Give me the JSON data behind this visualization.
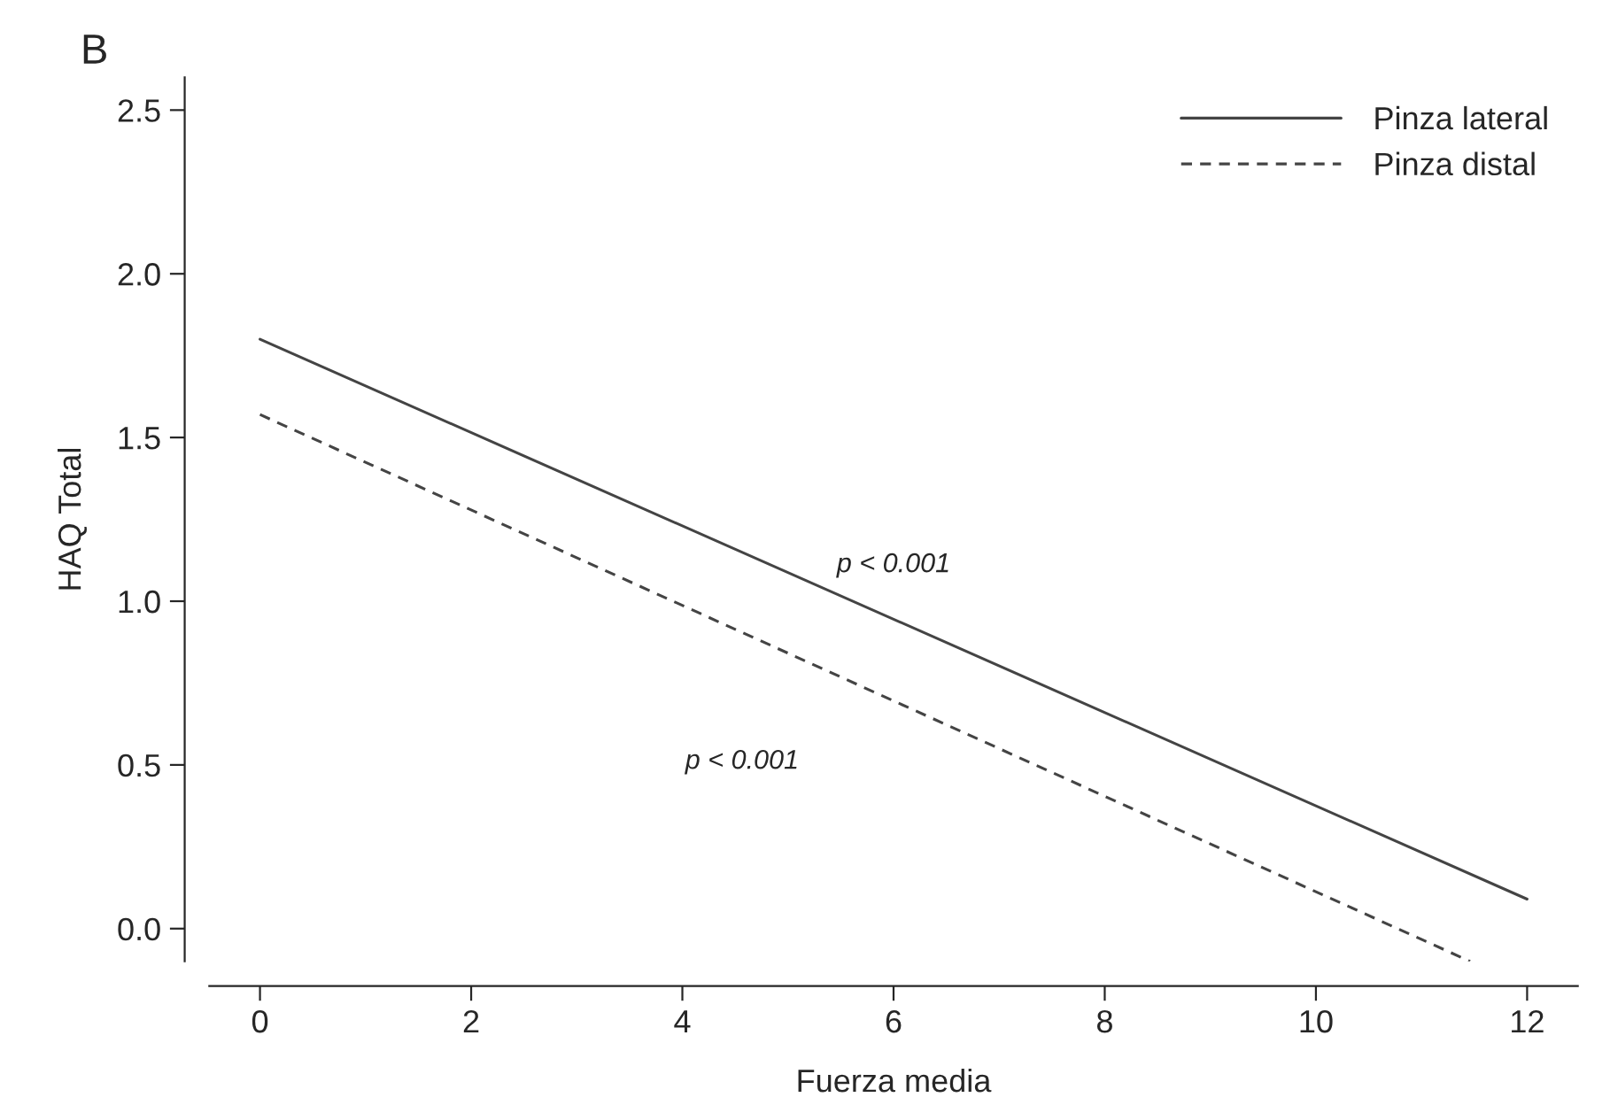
{
  "chart_data": {
    "type": "line",
    "xlabel": "Fuerza media",
    "ylabel": "HAQ Total",
    "series": [
      {
        "name": "Pinza lateral",
        "color": "#444444",
        "line_style": "solid",
        "x": [
          0,
          12
        ],
        "values": [
          1.8,
          0.09
        ]
      },
      {
        "name": "Pinza distal",
        "color": "#444444",
        "line_style": "dashed",
        "x": [
          0,
          11.46
        ],
        "values": [
          1.57,
          -0.1
        ]
      }
    ],
    "xlim": [
      -0.48,
      12.48
    ],
    "xticks": [
      0,
      2,
      4,
      6,
      8,
      10,
      12
    ],
    "ylim": [
      -0.1,
      2.6
    ],
    "yticks": [
      {
        "value": 0,
        "label": "0.0"
      },
      {
        "value": 0.5,
        "label": "0.5"
      },
      {
        "value": 1,
        "label": "1.0"
      },
      {
        "value": 1.5,
        "label": "1.5"
      },
      {
        "value": 2,
        "label": "2.0"
      },
      {
        "value": 2.5,
        "label": "2.5"
      }
    ],
    "grid": false,
    "legend": "top right",
    "marker": "none",
    "annotations": [
      "B",
      "p < 0.001",
      "p < 0.001"
    ]
  }
}
